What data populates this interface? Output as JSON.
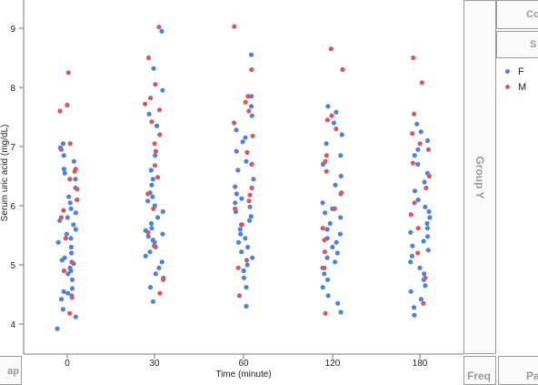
{
  "chart_data": {
    "type": "scatter",
    "title": "",
    "xlabel": "Time (minute)",
    "ylabel": "Serum uric acid (mg/dL)",
    "x_categories": [
      "0",
      "30",
      "60",
      "120",
      "180"
    ],
    "y_ticks": [
      4,
      5,
      6,
      7,
      8,
      9
    ],
    "ylim": [
      3.5,
      9.4
    ],
    "grid": false,
    "legend_position": "top-right",
    "series": [
      {
        "name": "F",
        "color": "#4c82d9",
        "points": [
          {
            "x": "0",
            "y": 3.92
          },
          {
            "x": "0",
            "y": 4.12
          },
          {
            "x": "0",
            "y": 4.25
          },
          {
            "x": "0",
            "y": 4.42
          },
          {
            "x": "0",
            "y": 4.48
          },
          {
            "x": "0",
            "y": 4.52
          },
          {
            "x": "0",
            "y": 4.55
          },
          {
            "x": "0",
            "y": 4.6
          },
          {
            "x": "0",
            "y": 4.75
          },
          {
            "x": "0",
            "y": 4.85
          },
          {
            "x": "0",
            "y": 4.9
          },
          {
            "x": "0",
            "y": 4.95
          },
          {
            "x": "0",
            "y": 5.02
          },
          {
            "x": "0",
            "y": 5.08
          },
          {
            "x": "0",
            "y": 5.12
          },
          {
            "x": "0",
            "y": 5.2
          },
          {
            "x": "0",
            "y": 5.3
          },
          {
            "x": "0",
            "y": 5.38
          },
          {
            "x": "0",
            "y": 5.45
          },
          {
            "x": "0",
            "y": 5.52
          },
          {
            "x": "0",
            "y": 5.6
          },
          {
            "x": "0",
            "y": 5.68
          },
          {
            "x": "0",
            "y": 5.75
          },
          {
            "x": "0",
            "y": 5.8
          },
          {
            "x": "0",
            "y": 5.88
          },
          {
            "x": "0",
            "y": 5.95
          },
          {
            "x": "0",
            "y": 6.05
          },
          {
            "x": "0",
            "y": 6.15
          },
          {
            "x": "0",
            "y": 6.3
          },
          {
            "x": "0",
            "y": 6.45
          },
          {
            "x": "0",
            "y": 6.55
          },
          {
            "x": "0",
            "y": 6.62
          },
          {
            "x": "0",
            "y": 6.75
          },
          {
            "x": "0",
            "y": 6.85
          },
          {
            "x": "0",
            "y": 6.98
          },
          {
            "x": "0",
            "y": 7.05
          },
          {
            "x": "30",
            "y": 4.38
          },
          {
            "x": "30",
            "y": 4.62
          },
          {
            "x": "30",
            "y": 4.75
          },
          {
            "x": "30",
            "y": 4.85
          },
          {
            "x": "30",
            "y": 4.95
          },
          {
            "x": "30",
            "y": 5.05
          },
          {
            "x": "30",
            "y": 5.15
          },
          {
            "x": "30",
            "y": 5.22
          },
          {
            "x": "30",
            "y": 5.3
          },
          {
            "x": "30",
            "y": 5.38
          },
          {
            "x": "30",
            "y": 5.42
          },
          {
            "x": "30",
            "y": 5.48
          },
          {
            "x": "30",
            "y": 5.52
          },
          {
            "x": "30",
            "y": 5.58
          },
          {
            "x": "30",
            "y": 5.62
          },
          {
            "x": "30",
            "y": 5.7
          },
          {
            "x": "30",
            "y": 5.8
          },
          {
            "x": "30",
            "y": 5.9
          },
          {
            "x": "30",
            "y": 6.0
          },
          {
            "x": "30",
            "y": 6.08
          },
          {
            "x": "30",
            "y": 6.15
          },
          {
            "x": "30",
            "y": 6.22
          },
          {
            "x": "30",
            "y": 6.35
          },
          {
            "x": "30",
            "y": 6.45
          },
          {
            "x": "30",
            "y": 6.6
          },
          {
            "x": "30",
            "y": 6.85
          },
          {
            "x": "30",
            "y": 7.35
          },
          {
            "x": "30",
            "y": 7.55
          },
          {
            "x": "30",
            "y": 7.95
          },
          {
            "x": "30",
            "y": 8.32
          },
          {
            "x": "30",
            "y": 8.95
          },
          {
            "x": "60",
            "y": 4.3
          },
          {
            "x": "60",
            "y": 4.62
          },
          {
            "x": "60",
            "y": 4.78
          },
          {
            "x": "60",
            "y": 4.9
          },
          {
            "x": "60",
            "y": 5.0
          },
          {
            "x": "60",
            "y": 5.12
          },
          {
            "x": "60",
            "y": 5.22
          },
          {
            "x": "60",
            "y": 5.3
          },
          {
            "x": "60",
            "y": 5.38
          },
          {
            "x": "60",
            "y": 5.45
          },
          {
            "x": "60",
            "y": 5.52
          },
          {
            "x": "60",
            "y": 5.6
          },
          {
            "x": "60",
            "y": 5.68
          },
          {
            "x": "60",
            "y": 5.75
          },
          {
            "x": "60",
            "y": 5.82
          },
          {
            "x": "60",
            "y": 5.9
          },
          {
            "x": "60",
            "y": 5.98
          },
          {
            "x": "60",
            "y": 6.05
          },
          {
            "x": "60",
            "y": 6.12
          },
          {
            "x": "60",
            "y": 6.2
          },
          {
            "x": "60",
            "y": 6.32
          },
          {
            "x": "60",
            "y": 6.45
          },
          {
            "x": "60",
            "y": 6.6
          },
          {
            "x": "60",
            "y": 6.75
          },
          {
            "x": "60",
            "y": 6.92
          },
          {
            "x": "60",
            "y": 7.08
          },
          {
            "x": "60",
            "y": 7.15
          },
          {
            "x": "60",
            "y": 7.28
          },
          {
            "x": "60",
            "y": 7.52
          },
          {
            "x": "60",
            "y": 7.68
          },
          {
            "x": "60",
            "y": 7.85
          },
          {
            "x": "60",
            "y": 8.55
          },
          {
            "x": "120",
            "y": 4.2
          },
          {
            "x": "120",
            "y": 4.35
          },
          {
            "x": "120",
            "y": 4.48
          },
          {
            "x": "120",
            "y": 4.62
          },
          {
            "x": "120",
            "y": 4.75
          },
          {
            "x": "120",
            "y": 4.85
          },
          {
            "x": "120",
            "y": 4.95
          },
          {
            "x": "120",
            "y": 5.05
          },
          {
            "x": "120",
            "y": 5.12
          },
          {
            "x": "120",
            "y": 5.2
          },
          {
            "x": "120",
            "y": 5.3
          },
          {
            "x": "120",
            "y": 5.38
          },
          {
            "x": "120",
            "y": 5.45
          },
          {
            "x": "120",
            "y": 5.52
          },
          {
            "x": "120",
            "y": 5.6
          },
          {
            "x": "120",
            "y": 5.7
          },
          {
            "x": "120",
            "y": 5.8
          },
          {
            "x": "120",
            "y": 5.88
          },
          {
            "x": "120",
            "y": 5.95
          },
          {
            "x": "120",
            "y": 6.05
          },
          {
            "x": "120",
            "y": 6.2
          },
          {
            "x": "120",
            "y": 6.35
          },
          {
            "x": "120",
            "y": 6.5
          },
          {
            "x": "120",
            "y": 6.7
          },
          {
            "x": "120",
            "y": 6.85
          },
          {
            "x": "120",
            "y": 7.05
          },
          {
            "x": "120",
            "y": 7.2
          },
          {
            "x": "120",
            "y": 7.4
          },
          {
            "x": "120",
            "y": 7.58
          },
          {
            "x": "120",
            "y": 7.68
          },
          {
            "x": "180",
            "y": 4.15
          },
          {
            "x": "180",
            "y": 4.28
          },
          {
            "x": "180",
            "y": 4.42
          },
          {
            "x": "180",
            "y": 4.55
          },
          {
            "x": "180",
            "y": 4.65
          },
          {
            "x": "180",
            "y": 4.75
          },
          {
            "x": "180",
            "y": 4.85
          },
          {
            "x": "180",
            "y": 4.95
          },
          {
            "x": "180",
            "y": 5.05
          },
          {
            "x": "180",
            "y": 5.15
          },
          {
            "x": "180",
            "y": 5.25
          },
          {
            "x": "180",
            "y": 5.32
          },
          {
            "x": "180",
            "y": 5.4
          },
          {
            "x": "180",
            "y": 5.48
          },
          {
            "x": "180",
            "y": 5.55
          },
          {
            "x": "180",
            "y": 5.62
          },
          {
            "x": "180",
            "y": 5.7
          },
          {
            "x": "180",
            "y": 5.8
          },
          {
            "x": "180",
            "y": 5.9
          },
          {
            "x": "180",
            "y": 5.98
          },
          {
            "x": "180",
            "y": 6.1
          },
          {
            "x": "180",
            "y": 6.25
          },
          {
            "x": "180",
            "y": 6.4
          },
          {
            "x": "180",
            "y": 6.55
          },
          {
            "x": "180",
            "y": 6.7
          },
          {
            "x": "180",
            "y": 6.85
          },
          {
            "x": "180",
            "y": 6.95
          },
          {
            "x": "180",
            "y": 7.1
          },
          {
            "x": "180",
            "y": 7.25
          },
          {
            "x": "180",
            "y": 7.38
          }
        ]
      },
      {
        "name": "M",
        "color": "#d95562",
        "points": [
          {
            "x": "0",
            "y": 4.18
          },
          {
            "x": "0",
            "y": 4.45
          },
          {
            "x": "0",
            "y": 4.9
          },
          {
            "x": "0",
            "y": 5.05
          },
          {
            "x": "0",
            "y": 5.45
          },
          {
            "x": "0",
            "y": 5.8
          },
          {
            "x": "0",
            "y": 5.92
          },
          {
            "x": "0",
            "y": 6.1
          },
          {
            "x": "0",
            "y": 6.28
          },
          {
            "x": "0",
            "y": 6.45
          },
          {
            "x": "0",
            "y": 6.58
          },
          {
            "x": "0",
            "y": 6.62
          },
          {
            "x": "0",
            "y": 6.95
          },
          {
            "x": "0",
            "y": 7.05
          },
          {
            "x": "0",
            "y": 7.6
          },
          {
            "x": "0",
            "y": 7.7
          },
          {
            "x": "0",
            "y": 8.25
          },
          {
            "x": "30",
            "y": 4.52
          },
          {
            "x": "30",
            "y": 4.78
          },
          {
            "x": "30",
            "y": 5.32
          },
          {
            "x": "30",
            "y": 5.55
          },
          {
            "x": "30",
            "y": 5.95
          },
          {
            "x": "30",
            "y": 6.2
          },
          {
            "x": "30",
            "y": 6.48
          },
          {
            "x": "30",
            "y": 6.68
          },
          {
            "x": "30",
            "y": 6.92
          },
          {
            "x": "30",
            "y": 7.05
          },
          {
            "x": "30",
            "y": 7.2
          },
          {
            "x": "30",
            "y": 7.42
          },
          {
            "x": "30",
            "y": 7.62
          },
          {
            "x": "30",
            "y": 7.72
          },
          {
            "x": "30",
            "y": 7.82
          },
          {
            "x": "30",
            "y": 8.05
          },
          {
            "x": "30",
            "y": 8.5
          },
          {
            "x": "30",
            "y": 9.02
          },
          {
            "x": "60",
            "y": 4.48
          },
          {
            "x": "60",
            "y": 4.95
          },
          {
            "x": "60",
            "y": 5.08
          },
          {
            "x": "60",
            "y": 5.68
          },
          {
            "x": "60",
            "y": 5.95
          },
          {
            "x": "60",
            "y": 6.08
          },
          {
            "x": "60",
            "y": 6.18
          },
          {
            "x": "60",
            "y": 6.3
          },
          {
            "x": "60",
            "y": 6.7
          },
          {
            "x": "60",
            "y": 6.9
          },
          {
            "x": "60",
            "y": 7.18
          },
          {
            "x": "60",
            "y": 7.4
          },
          {
            "x": "60",
            "y": 7.6
          },
          {
            "x": "60",
            "y": 7.75
          },
          {
            "x": "60",
            "y": 7.85
          },
          {
            "x": "60",
            "y": 8.3
          },
          {
            "x": "60",
            "y": 9.03
          },
          {
            "x": "120",
            "y": 4.18
          },
          {
            "x": "120",
            "y": 4.95
          },
          {
            "x": "120",
            "y": 5.22
          },
          {
            "x": "120",
            "y": 5.42
          },
          {
            "x": "120",
            "y": 5.62
          },
          {
            "x": "120",
            "y": 5.95
          },
          {
            "x": "120",
            "y": 6.22
          },
          {
            "x": "120",
            "y": 6.58
          },
          {
            "x": "120",
            "y": 6.75
          },
          {
            "x": "120",
            "y": 6.85
          },
          {
            "x": "120",
            "y": 7.3
          },
          {
            "x": "120",
            "y": 7.45
          },
          {
            "x": "120",
            "y": 7.52
          },
          {
            "x": "120",
            "y": 8.3
          },
          {
            "x": "120",
            "y": 8.65
          },
          {
            "x": "180",
            "y": 4.35
          },
          {
            "x": "180",
            "y": 4.78
          },
          {
            "x": "180",
            "y": 5.2
          },
          {
            "x": "180",
            "y": 5.62
          },
          {
            "x": "180",
            "y": 5.85
          },
          {
            "x": "180",
            "y": 6.05
          },
          {
            "x": "180",
            "y": 6.3
          },
          {
            "x": "180",
            "y": 6.5
          },
          {
            "x": "180",
            "y": 6.72
          },
          {
            "x": "180",
            "y": 6.95
          },
          {
            "x": "180",
            "y": 7.05
          },
          {
            "x": "180",
            "y": 7.22
          },
          {
            "x": "180",
            "y": 7.55
          },
          {
            "x": "180",
            "y": 8.08
          },
          {
            "x": "180",
            "y": 8.5
          }
        ]
      }
    ]
  },
  "zones": {
    "group_y": "Group Y",
    "freq": "Freq",
    "bottom_left": "ap",
    "bottom_right": "Pa",
    "top_right_1": "Co",
    "top_right_2": "S"
  }
}
